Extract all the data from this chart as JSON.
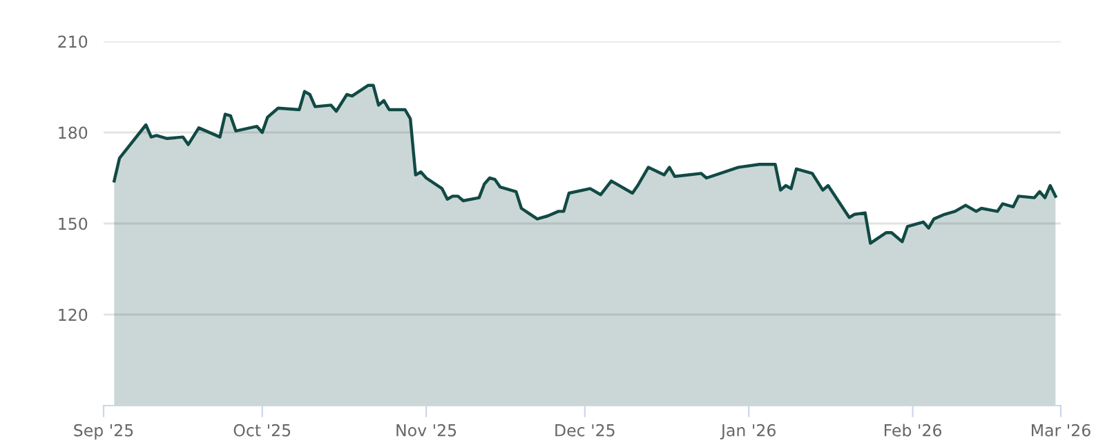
{
  "chart_data": {
    "type": "area",
    "x": [
      "2025-09-03",
      "2025-09-04",
      "2025-09-09",
      "2025-09-10",
      "2025-09-11",
      "2025-09-13",
      "2025-09-16",
      "2025-09-17",
      "2025-09-19",
      "2025-09-23",
      "2025-09-24",
      "2025-09-25",
      "2025-09-26",
      "2025-09-30",
      "2025-10-01",
      "2025-10-02",
      "2025-10-04",
      "2025-10-08",
      "2025-10-09",
      "2025-10-10",
      "2025-10-11",
      "2025-10-14",
      "2025-10-15",
      "2025-10-17",
      "2025-10-18",
      "2025-10-21",
      "2025-10-22",
      "2025-10-23",
      "2025-10-24",
      "2025-10-25",
      "2025-10-28",
      "2025-10-29",
      "2025-10-30",
      "2025-10-31",
      "2025-11-01",
      "2025-11-04",
      "2025-11-05",
      "2025-11-06",
      "2025-11-07",
      "2025-11-08",
      "2025-11-11",
      "2025-11-12",
      "2025-11-13",
      "2025-11-14",
      "2025-11-15",
      "2025-11-18",
      "2025-11-19",
      "2025-11-22",
      "2025-11-24",
      "2025-11-26",
      "2025-11-27",
      "2025-11-28",
      "2025-12-02",
      "2025-12-04",
      "2025-12-06",
      "2025-12-10",
      "2025-12-11",
      "2025-12-13",
      "2025-12-16",
      "2025-12-17",
      "2025-12-18",
      "2025-12-23",
      "2025-12-24",
      "2025-12-30",
      "2026-01-03",
      "2026-01-06",
      "2026-01-07",
      "2026-01-08",
      "2026-01-09",
      "2026-01-10",
      "2026-01-13",
      "2026-01-15",
      "2026-01-16",
      "2026-01-20",
      "2026-01-21",
      "2026-01-23",
      "2026-01-24",
      "2026-01-27",
      "2026-01-28",
      "2026-01-30",
      "2026-01-31",
      "2026-02-03",
      "2026-02-04",
      "2026-02-05",
      "2026-02-07",
      "2026-02-09",
      "2026-02-11",
      "2026-02-13",
      "2026-02-14",
      "2026-02-17",
      "2026-02-18",
      "2026-02-20",
      "2026-02-21",
      "2026-02-24",
      "2026-02-25",
      "2026-02-26",
      "2026-02-27",
      "2026-02-28"
    ],
    "series": [
      {
        "color": "#114a45",
        "values": [
          164,
          171.5,
          182.5,
          178.5,
          179,
          178,
          178.5,
          176,
          181.5,
          178.5,
          186,
          185.5,
          180.5,
          182,
          180,
          185,
          188,
          187.5,
          193.5,
          192.5,
          188.5,
          189,
          187,
          192.5,
          192,
          195.5,
          195.5,
          189,
          190.5,
          187.5,
          187.5,
          184.5,
          166,
          167,
          165,
          161.5,
          158,
          159,
          159,
          157.5,
          158.5,
          163,
          165,
          164.5,
          162,
          160.5,
          155,
          151.5,
          152.5,
          154,
          154,
          160,
          161.5,
          159.5,
          164,
          160,
          162.5,
          168.5,
          166,
          168.5,
          165.5,
          166.5,
          165,
          168.5,
          169.5,
          169.5,
          161,
          162.5,
          161.5,
          168,
          166.5,
          161,
          162.5,
          152,
          153,
          153.5,
          143.5,
          147,
          147,
          144,
          149,
          150.5,
          148.5,
          151.5,
          153,
          154,
          156,
          154,
          155,
          154,
          156.5,
          155.5,
          159,
          158.5,
          160.5,
          158.5,
          162.5,
          159
        ]
      }
    ],
    "xlim": [
      "2025-09-01",
      "2026-03-01"
    ],
    "xticks": [
      {
        "value": "2025-09-01",
        "label": "Sep '25"
      },
      {
        "value": "2025-10-01",
        "label": "Oct '25"
      },
      {
        "value": "2025-11-01",
        "label": "Nov '25"
      },
      {
        "value": "2025-12-01",
        "label": "Dec '25"
      },
      {
        "value": "2026-01-01",
        "label": "Jan '26"
      },
      {
        "value": "2026-02-01",
        "label": "Feb '26"
      },
      {
        "value": "2026-03-01",
        "label": "Mar '26"
      }
    ],
    "ylim": [
      90,
      210
    ],
    "yticks": [
      120,
      150,
      180,
      210
    ],
    "grid": "y",
    "marker": "none",
    "line_style": "solid"
  }
}
